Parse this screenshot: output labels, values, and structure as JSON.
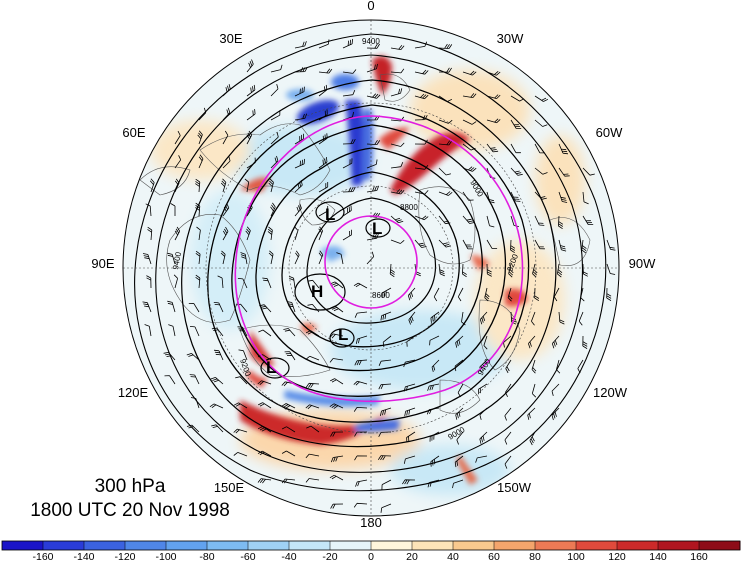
{
  "caption": {
    "level": "300 hPa",
    "valid_time": "1800 UTC 20 Nov 1998"
  },
  "longitude_labels": [
    {
      "text": "0",
      "lon": 0
    },
    {
      "text": "30W",
      "lon": -30
    },
    {
      "text": "60W",
      "lon": -60
    },
    {
      "text": "90W",
      "lon": -90
    },
    {
      "text": "120W",
      "lon": -120
    },
    {
      "text": "150W",
      "lon": -150
    },
    {
      "text": "180",
      "lon": 180
    },
    {
      "text": "150E",
      "lon": 150
    },
    {
      "text": "120E",
      "lon": 120
    },
    {
      "text": "90E",
      "lon": 90
    },
    {
      "text": "60E",
      "lon": 60
    },
    {
      "text": "30E",
      "lon": 30
    }
  ],
  "contour_labels": [
    "9400",
    "9200",
    "9000",
    "8800",
    "8600"
  ],
  "pressure_systems": [
    {
      "symbol": "L",
      "id": "low-1"
    },
    {
      "symbol": "L",
      "id": "low-2"
    },
    {
      "symbol": "H",
      "id": "high-1"
    },
    {
      "symbol": "L",
      "id": "low-3"
    },
    {
      "symbol": "L",
      "id": "low-4"
    }
  ],
  "colorbar": {
    "ticks": [
      "-160",
      "-140",
      "-120",
      "-100",
      "-80",
      "-60",
      "-40",
      "-20",
      "0",
      "20",
      "40",
      "60",
      "80",
      "100",
      "120",
      "140",
      "160"
    ],
    "colors": [
      "#1a14c8",
      "#2a3cd8",
      "#3b62e0",
      "#4f86e8",
      "#62a2ee",
      "#7dbbf2",
      "#9fd1f5",
      "#c4e6f8",
      "#e6f5fa",
      "#fff6dc",
      "#fde4b8",
      "#f9c98e",
      "#f4a56c",
      "#ec7a55",
      "#e04a3c",
      "#cc2a2a",
      "#b01520",
      "#8e0c18"
    ]
  },
  "colors": {
    "ring": "#e01ee0",
    "contour": "#000000",
    "coast": "#555555"
  }
}
